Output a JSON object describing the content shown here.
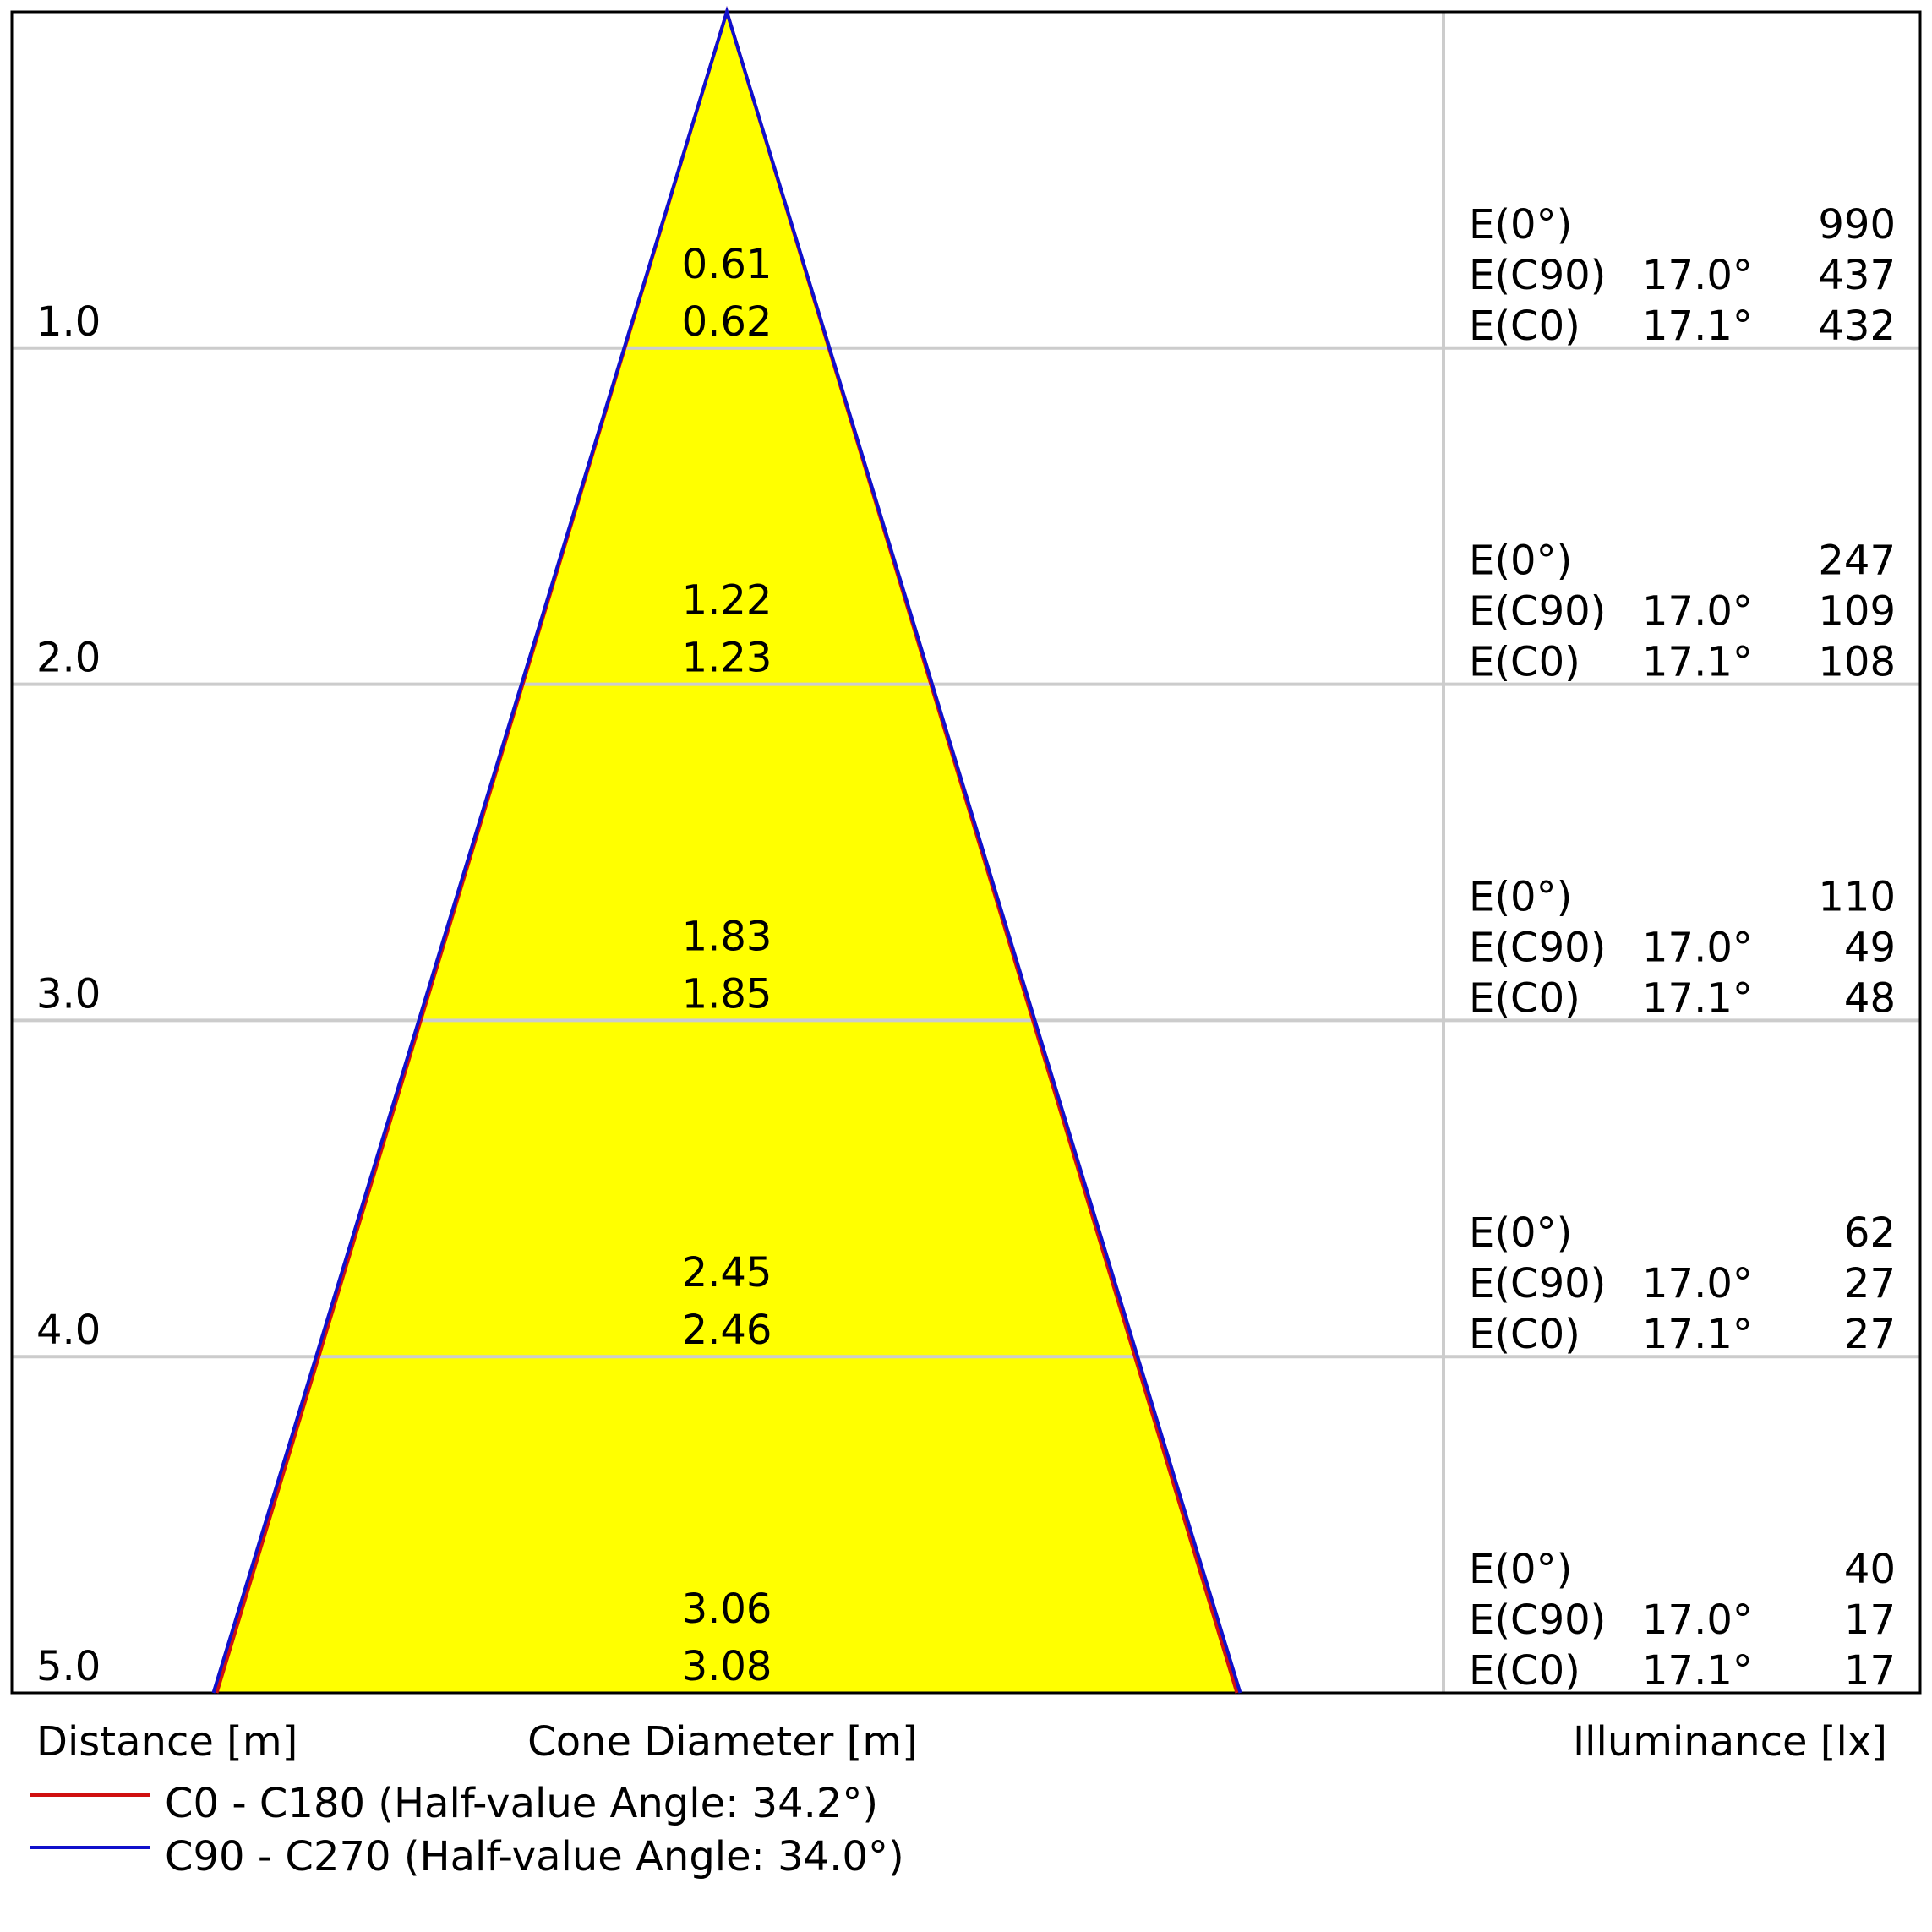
{
  "chart_data": {
    "type": "cone-diagram",
    "colors": {
      "fill": "#ffff00",
      "c0_line": "#d01010",
      "c90_line": "#1010cc",
      "grid": "#cccccc",
      "frame": "#000000"
    },
    "rows": [
      {
        "distance": "1.0",
        "d_c0": 0.61,
        "d_c90": 0.62,
        "diam_top": "0.61",
        "diam_bottom": "0.62",
        "e0": "990",
        "e_c90_angle": "17.0°",
        "e_c90": "437",
        "e_c0_angle": "17.1°",
        "e_c0": "432"
      },
      {
        "distance": "2.0",
        "d_c0": 1.22,
        "d_c90": 1.23,
        "diam_top": "1.22",
        "diam_bottom": "1.23",
        "e0": "247",
        "e_c90_angle": "17.0°",
        "e_c90": "109",
        "e_c0_angle": "17.1°",
        "e_c0": "108"
      },
      {
        "distance": "3.0",
        "d_c0": 1.83,
        "d_c90": 1.85,
        "diam_top": "1.83",
        "diam_bottom": "1.85",
        "e0": "110",
        "e_c90_angle": "17.0°",
        "e_c90": "49",
        "e_c0_angle": "17.1°",
        "e_c0": "48"
      },
      {
        "distance": "4.0",
        "d_c0": 2.45,
        "d_c90": 2.46,
        "diam_top": "2.45",
        "diam_bottom": "2.46",
        "e0": "62",
        "e_c90_angle": "17.0°",
        "e_c90": "27",
        "e_c0_angle": "17.1°",
        "e_c0": "27"
      },
      {
        "distance": "5.0",
        "d_c0": 3.06,
        "d_c90": 3.08,
        "diam_top": "3.06",
        "diam_bottom": "3.08",
        "e0": "40",
        "e_c90_angle": "17.0°",
        "e_c90": "17",
        "e_c0_angle": "17.1°",
        "e_c0": "17"
      }
    ],
    "row_labels": {
      "e0": "E(0°)",
      "e_c90": "E(C90)",
      "e_c0": "E(C0)"
    },
    "axis_labels": {
      "distance": "Distance [m]",
      "diameter": "Cone Diameter [m]",
      "illuminance": "Illuminance [lx]"
    },
    "legend": [
      {
        "label": "C0 - C180 (Half-value Angle: 34.2°)",
        "color": "#d01010"
      },
      {
        "label": "C90 - C270 (Half-value Angle: 34.0°)",
        "color": "#1010cc"
      }
    ]
  }
}
